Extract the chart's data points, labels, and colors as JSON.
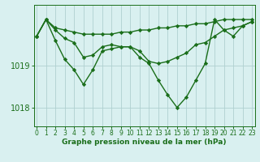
{
  "line1": [
    1019.7,
    1020.1,
    1019.9,
    1019.85,
    1019.8,
    1019.75,
    1019.75,
    1019.75,
    1019.75,
    1019.8,
    1019.8,
    1019.85,
    1019.85,
    1019.9,
    1019.9,
    1019.95,
    1019.95,
    1020.0,
    1020.0,
    1020.05,
    1020.1,
    1020.1,
    1020.1,
    1020.1
  ],
  "line2": [
    1019.7,
    1020.1,
    1019.85,
    1019.65,
    1019.55,
    1019.2,
    1019.25,
    1019.45,
    1019.5,
    1019.45,
    1019.45,
    1019.35,
    1019.1,
    1019.05,
    1019.1,
    1019.2,
    1019.3,
    1019.5,
    1019.55,
    1019.7,
    1019.85,
    1019.9,
    1019.95,
    1020.05
  ],
  "line3": [
    1019.7,
    1020.1,
    1019.6,
    1019.15,
    1018.9,
    1018.55,
    1018.9,
    1019.35,
    1019.4,
    1019.45,
    1019.45,
    1019.2,
    1019.05,
    1018.65,
    1018.3,
    1018.0,
    1018.25,
    1018.65,
    1019.05,
    1020.1,
    1019.85,
    1019.7,
    1019.95,
    1020.05
  ],
  "hours": [
    0,
    1,
    2,
    3,
    4,
    5,
    6,
    7,
    8,
    9,
    10,
    11,
    12,
    13,
    14,
    15,
    16,
    17,
    18,
    19,
    20,
    21,
    22,
    23
  ],
  "line_color": "#1a6e1a",
  "bg_color": "#d9f0f0",
  "grid_color": "#b0d0d0",
  "xlabel_text": "Graphe pression niveau de la mer (hPa)",
  "yticks": [
    1018,
    1019
  ],
  "ylim": [
    1017.55,
    1020.45
  ],
  "xlim": [
    -0.3,
    23.3
  ],
  "tick_label_color": "#1a6e1a",
  "xlabel_color": "#1a6e1a",
  "marker": "D",
  "markersize": 2.2,
  "linewidth": 1.0,
  "tick_fontsize": 5.5,
  "xlabel_fontsize": 6.5
}
